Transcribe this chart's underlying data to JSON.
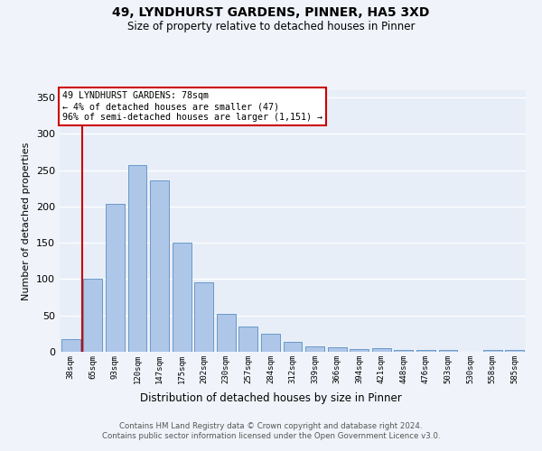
{
  "title1": "49, LYNDHURST GARDENS, PINNER, HA5 3XD",
  "title2": "Size of property relative to detached houses in Pinner",
  "xlabel": "Distribution of detached houses by size in Pinner",
  "ylabel": "Number of detached properties",
  "bar_labels": [
    "38sqm",
    "65sqm",
    "93sqm",
    "120sqm",
    "147sqm",
    "175sqm",
    "202sqm",
    "230sqm",
    "257sqm",
    "284sqm",
    "312sqm",
    "339sqm",
    "366sqm",
    "394sqm",
    "421sqm",
    "448sqm",
    "476sqm",
    "503sqm",
    "530sqm",
    "558sqm",
    "585sqm"
  ],
  "bar_values": [
    18,
    100,
    204,
    257,
    236,
    150,
    95,
    52,
    35,
    25,
    14,
    8,
    6,
    4,
    5,
    2,
    3,
    2,
    0,
    2,
    2
  ],
  "bar_color": "#aec6e8",
  "bar_edge_color": "#5a8fc2",
  "red_line_x": 0.5,
  "annotation_lines": [
    "49 LYNDHURST GARDENS: 78sqm",
    "← 4% of detached houses are smaller (47)",
    "96% of semi-detached houses are larger (1,151) →"
  ],
  "annotation_box_color": "#ffffff",
  "annotation_border_color": "#cc0000",
  "red_line_color": "#cc0000",
  "ylim": [
    0,
    360
  ],
  "yticks": [
    0,
    50,
    100,
    150,
    200,
    250,
    300,
    350
  ],
  "footer1": "Contains HM Land Registry data © Crown copyright and database right 2024.",
  "footer2": "Contains public sector information licensed under the Open Government Licence v3.0.",
  "fig_bg_color": "#f0f4fa",
  "plot_bg_color": "#e8eef8"
}
